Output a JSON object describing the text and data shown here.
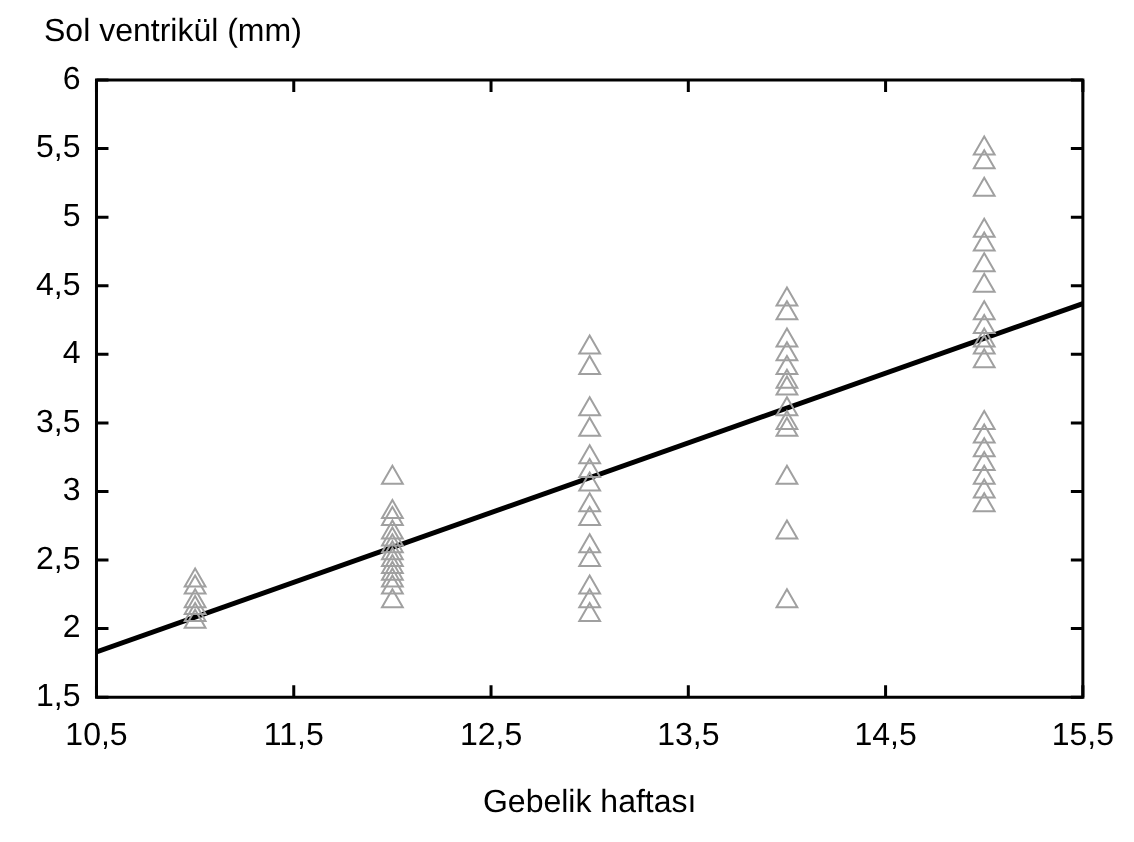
{
  "chart_data": {
    "type": "scatter",
    "xlabel": "Gebelik haftası",
    "ylabel": "Sol ventrikül (mm)",
    "marker": "triangle",
    "grid": false,
    "legend": false,
    "xlim": [
      10.5,
      15.5
    ],
    "xticks": [
      {
        "value": 10.5,
        "label": "10,5"
      },
      {
        "value": 11.5,
        "label": "11,5"
      },
      {
        "value": 12.5,
        "label": "12,5"
      },
      {
        "value": 13.5,
        "label": "13,5"
      },
      {
        "value": 14.5,
        "label": "14,5"
      },
      {
        "value": 15.5,
        "label": "15,5"
      }
    ],
    "ylim": [
      1.5,
      6
    ],
    "yticks": [
      {
        "value": 1.5,
        "label": "1,5"
      },
      2,
      {
        "value": 2.5,
        "label": "2,5"
      },
      3,
      {
        "value": 3.5,
        "label": "3,5"
      },
      4,
      {
        "value": 4.5,
        "label": "4,5"
      },
      5,
      {
        "value": 5.5,
        "label": "5,5"
      },
      6
    ],
    "series": [
      {
        "color": "#a0a0a0",
        "x": [
          11,
          11,
          11,
          11,
          11,
          11,
          12,
          12,
          12,
          12,
          12,
          12,
          12,
          12,
          12,
          12,
          12,
          12,
          12,
          13,
          13,
          13,
          13,
          13,
          13,
          13,
          13,
          13,
          13,
          13,
          13,
          13,
          13,
          14,
          14,
          14,
          14,
          14,
          14,
          14,
          14,
          14,
          14,
          14,
          14,
          14,
          15,
          15,
          15,
          15,
          15,
          15,
          15,
          15,
          15,
          15,
          15,
          15,
          15,
          15,
          15,
          15,
          15,
          15,
          15
        ],
        "values": [
          2.05,
          2.1,
          2.15,
          2.2,
          2.3,
          2.35,
          3.1,
          2.85,
          2.8,
          2.7,
          2.65,
          2.6,
          2.55,
          2.5,
          2.45,
          2.4,
          2.35,
          2.3,
          2.2,
          4.05,
          3.9,
          3.6,
          3.45,
          3.25,
          3.15,
          3.05,
          2.9,
          2.8,
          2.6,
          2.5,
          2.3,
          2.2,
          2.1,
          4.4,
          4.3,
          4.1,
          4.0,
          3.9,
          3.8,
          3.75,
          3.6,
          3.5,
          3.45,
          3.1,
          2.7,
          2.2,
          5.5,
          5.4,
          5.2,
          4.9,
          4.8,
          4.65,
          4.5,
          4.3,
          4.2,
          4.1,
          4.05,
          3.95,
          3.5,
          3.4,
          3.3,
          3.2,
          3.1,
          3.0,
          2.9
        ]
      },
      {
        "type": "line",
        "color": "#000000",
        "line_style": "solid",
        "marker": "none",
        "x": [
          10.5,
          15.5
        ],
        "values": [
          1.83,
          4.37
        ]
      }
    ]
  }
}
